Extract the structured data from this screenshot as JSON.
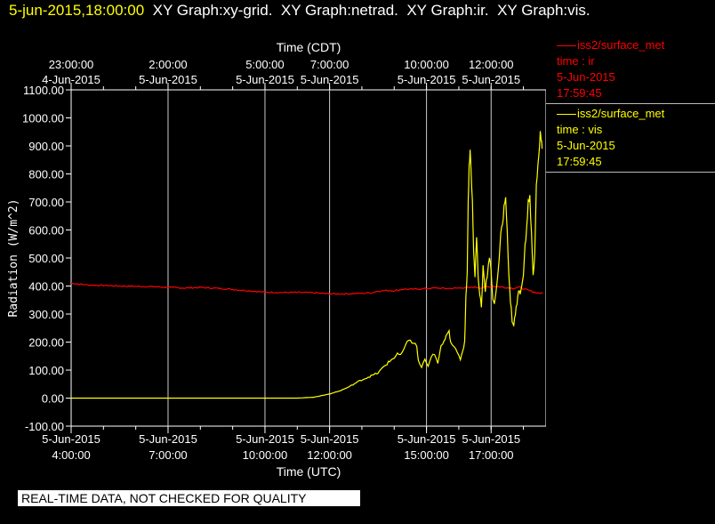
{
  "header": {
    "datetime": "5-jun-2015,18:00:00",
    "graphs": [
      "XY Graph:xy-grid.",
      "XY Graph:netrad.",
      "XY Graph:ir.",
      "XY Graph:vis."
    ]
  },
  "legend": [
    {
      "source": "iss2/surface_met",
      "var": "time : ir",
      "date": "5-Jun-2015",
      "time": "17:59:45",
      "color": "#ff0000"
    },
    {
      "source": "iss2/surface_met",
      "var": "time : vis",
      "date": "5-Jun-2015",
      "time": "17:59:45",
      "color": "#ffff00"
    }
  ],
  "quality_banner": "REAL-TIME DATA, NOT CHECKED FOR QUALITY",
  "chart_data": {
    "type": "line",
    "ylabel": "Radiation (W/m^2)",
    "xlabel_bottom": "Time (UTC)",
    "xlabel_top": "Time (CDT)",
    "ylim": [
      -100,
      1100
    ],
    "xlim_utc_hours": [
      4,
      18.7
    ],
    "grid": true,
    "y_ticks": [
      "-100.00",
      "0.00",
      "100.00",
      "200.00",
      "300.00",
      "400.00",
      "500.00",
      "600.00",
      "700.00",
      "800.00",
      "900.00",
      "1000.00",
      "1100.00"
    ],
    "bottom_ticks": [
      {
        "h": 4,
        "l1": "5-Jun-2015",
        "l2": "4:00:00"
      },
      {
        "h": 7,
        "l1": "5-Jun-2015",
        "l2": "7:00:00"
      },
      {
        "h": 10,
        "l1": "5-Jun-2015",
        "l2": "10:00:00"
      },
      {
        "h": 12,
        "l1": "5-Jun-2015",
        "l2": "12:00:00"
      },
      {
        "h": 15,
        "l1": "5-Jun-2015",
        "l2": "15:00:00"
      },
      {
        "h": 17,
        "l1": "5-Jun-2015",
        "l2": "17:00:00"
      }
    ],
    "top_ticks": [
      {
        "h": 4,
        "l1": "23:00:00",
        "l2": "4-Jun-2015"
      },
      {
        "h": 7,
        "l1": "2:00:00",
        "l2": "5-Jun-2015"
      },
      {
        "h": 10,
        "l1": "5:00:00",
        "l2": "5-Jun-2015"
      },
      {
        "h": 12,
        "l1": "7:00:00",
        "l2": "5-Jun-2015"
      },
      {
        "h": 15,
        "l1": "10:00:00",
        "l2": "5-Jun-2015"
      },
      {
        "h": 17,
        "l1": "12:00:00",
        "l2": "5-Jun-2015"
      }
    ],
    "series": [
      {
        "name": "ir",
        "color": "#ff0000",
        "points": [
          [
            4,
            410
          ],
          [
            4.5,
            404
          ],
          [
            5,
            402
          ],
          [
            5.5,
            400
          ],
          [
            6,
            399
          ],
          [
            6.5,
            398
          ],
          [
            7,
            395
          ],
          [
            7.5,
            393
          ],
          [
            8,
            395
          ],
          [
            8.5,
            392
          ],
          [
            9,
            388
          ],
          [
            9.5,
            383
          ],
          [
            10,
            378
          ],
          [
            10.5,
            377
          ],
          [
            11,
            377
          ],
          [
            11.5,
            376
          ],
          [
            12,
            372
          ],
          [
            12.5,
            372
          ],
          [
            13,
            374
          ],
          [
            13.3,
            376
          ],
          [
            13.5,
            382
          ],
          [
            13.8,
            384
          ],
          [
            14,
            383
          ],
          [
            14.3,
            389
          ],
          [
            14.5,
            388
          ],
          [
            14.8,
            390
          ],
          [
            15,
            391
          ],
          [
            15.3,
            393
          ],
          [
            15.6,
            391
          ],
          [
            15.9,
            392
          ],
          [
            16.1,
            394
          ],
          [
            16.3,
            394
          ],
          [
            16.5,
            396
          ],
          [
            16.7,
            393
          ],
          [
            16.9,
            398
          ],
          [
            17.1,
            399
          ],
          [
            17.3,
            397
          ],
          [
            17.5,
            394
          ],
          [
            17.7,
            392
          ],
          [
            17.9,
            396
          ],
          [
            18.0,
            390
          ],
          [
            18.2,
            383
          ],
          [
            18.4,
            376
          ],
          [
            18.6,
            374
          ]
        ]
      },
      {
        "name": "vis",
        "color": "#ffff00",
        "points": [
          [
            4,
            0
          ],
          [
            5,
            0
          ],
          [
            6,
            0
          ],
          [
            7,
            0
          ],
          [
            8,
            0
          ],
          [
            9,
            0
          ],
          [
            10,
            0
          ],
          [
            11,
            0
          ],
          [
            11.5,
            3
          ],
          [
            11.8,
            10
          ],
          [
            12,
            15
          ],
          [
            12.3,
            25
          ],
          [
            12.6,
            40
          ],
          [
            12.9,
            60
          ],
          [
            13.2,
            75
          ],
          [
            13.5,
            90
          ],
          [
            13.7,
            115
          ],
          [
            13.9,
            135
          ],
          [
            14.0,
            145
          ],
          [
            14.1,
            160
          ],
          [
            14.2,
            150
          ],
          [
            14.3,
            175
          ],
          [
            14.4,
            195
          ],
          [
            14.5,
            210
          ],
          [
            14.6,
            195
          ],
          [
            14.7,
            185
          ],
          [
            14.75,
            130
          ],
          [
            14.85,
            110
          ],
          [
            14.95,
            140
          ],
          [
            15.05,
            110
          ],
          [
            15.15,
            145
          ],
          [
            15.25,
            160
          ],
          [
            15.35,
            120
          ],
          [
            15.45,
            185
          ],
          [
            15.55,
            200
          ],
          [
            15.6,
            230
          ],
          [
            15.7,
            240
          ],
          [
            15.75,
            205
          ],
          [
            15.85,
            180
          ],
          [
            15.95,
            160
          ],
          [
            16.05,
            140
          ],
          [
            16.12,
            170
          ],
          [
            16.18,
            200
          ],
          [
            16.21,
            320
          ],
          [
            16.23,
            390
          ],
          [
            16.26,
            450
          ],
          [
            16.29,
            700
          ],
          [
            16.32,
            830
          ],
          [
            16.35,
            880
          ],
          [
            16.38,
            820
          ],
          [
            16.42,
            700
          ],
          [
            16.46,
            520
          ],
          [
            16.5,
            430
          ],
          [
            16.55,
            580
          ],
          [
            16.6,
            430
          ],
          [
            16.65,
            370
          ],
          [
            16.7,
            330
          ],
          [
            16.75,
            470
          ],
          [
            16.82,
            390
          ],
          [
            16.88,
            440
          ],
          [
            16.95,
            500
          ],
          [
            17.0,
            450
          ],
          [
            17.05,
            360
          ],
          [
            17.1,
            340
          ],
          [
            17.2,
            420
          ],
          [
            17.3,
            580
          ],
          [
            17.35,
            620
          ],
          [
            17.4,
            680
          ],
          [
            17.45,
            720
          ],
          [
            17.5,
            600
          ],
          [
            17.55,
            430
          ],
          [
            17.6,
            350
          ],
          [
            17.65,
            280
          ],
          [
            17.7,
            260
          ],
          [
            17.75,
            300
          ],
          [
            17.8,
            340
          ],
          [
            17.85,
            380
          ],
          [
            17.9,
            370
          ],
          [
            18.0,
            450
          ],
          [
            18.05,
            540
          ],
          [
            18.1,
            600
          ],
          [
            18.15,
            700
          ],
          [
            18.2,
            720
          ],
          [
            18.25,
            580
          ],
          [
            18.3,
            430
          ],
          [
            18.35,
            520
          ],
          [
            18.4,
            760
          ],
          [
            18.45,
            830
          ],
          [
            18.5,
            890
          ],
          [
            18.52,
            950
          ],
          [
            18.55,
            920
          ],
          [
            18.58,
            890
          ]
        ]
      }
    ]
  }
}
